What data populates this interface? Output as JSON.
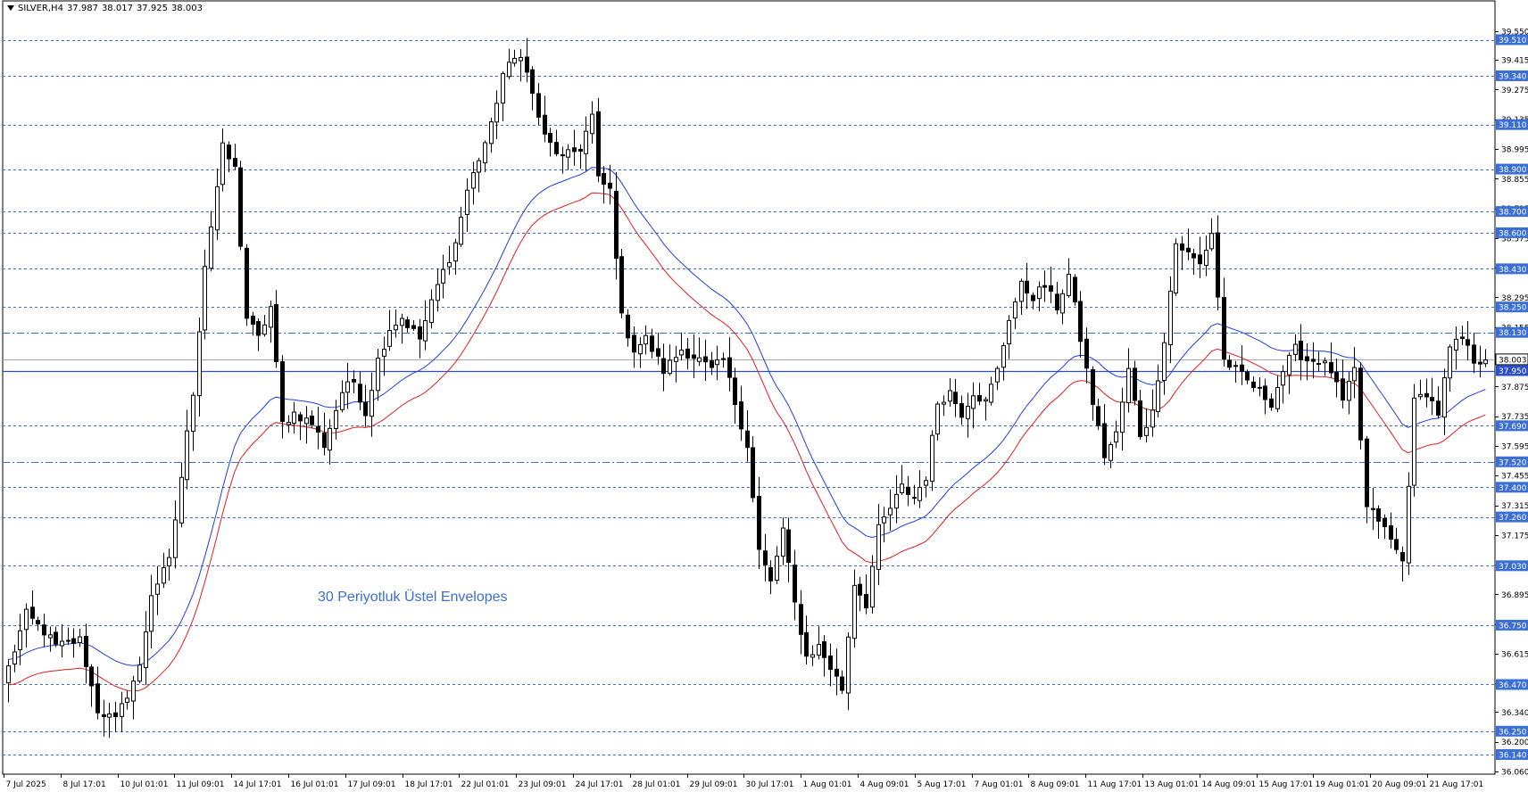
{
  "header": {
    "symbol": "SILVER,H4",
    "open": "37.987",
    "high": "38.017",
    "low": "37.925",
    "close": "38.003"
  },
  "annotation": "30 Periyotluk Üstel Envelopes",
  "chart_data": {
    "type": "candlestick",
    "symbol": "SILVER",
    "timeframe": "H4",
    "ylim": [
      36.06,
      39.55
    ],
    "y_ticks": [
      "39.550",
      "39.415",
      "39.275",
      "39.135",
      "38.995",
      "38.855",
      "38.715",
      "38.575",
      "38.435",
      "38.295",
      "38.155",
      "38.015",
      "37.875",
      "37.735",
      "37.595",
      "37.455",
      "37.315",
      "37.175",
      "37.035",
      "36.895",
      "36.755",
      "36.615",
      "36.475",
      "36.340",
      "36.200",
      "36.060"
    ],
    "x_ticks": [
      "7 Jul 2025",
      "8 Jul 17:01",
      "10 Jul 01:01",
      "11 Jul 09:01",
      "14 Jul 17:01",
      "16 Jul 01:01",
      "17 Jul 09:01",
      "18 Jul 17:01",
      "22 Jul 01:01",
      "23 Jul 09:01",
      "24 Jul 17:01",
      "28 Jul 01:01",
      "29 Jul 09:01",
      "30 Jul 17:01",
      "1 Aug 01:01",
      "4 Aug 09:01",
      "5 Aug 17:01",
      "7 Aug 01:01",
      "8 Aug 09:01",
      "11 Aug 17:01",
      "13 Aug 01:01",
      "14 Aug 09:01",
      "15 Aug 17:01",
      "19 Aug 01:01",
      "20 Aug 09:01",
      "21 Aug 17:01"
    ],
    "levels": [
      {
        "value": "39.510",
        "style": "dashed",
        "color": "#3b6fd6"
      },
      {
        "value": "39.340",
        "style": "dashed",
        "color": "#3b6fd6"
      },
      {
        "value": "39.110",
        "style": "dashed",
        "color": "#3b6fd6"
      },
      {
        "value": "38.900",
        "style": "dashed",
        "color": "#3b6fd6"
      },
      {
        "value": "38.700",
        "style": "dashed",
        "color": "#3b6fd6"
      },
      {
        "value": "38.600",
        "style": "dashed",
        "color": "#3b6fd6"
      },
      {
        "value": "38.430",
        "style": "dashed",
        "color": "#3b6fd6"
      },
      {
        "value": "38.250",
        "style": "dashed",
        "color": "#3b6fd6"
      },
      {
        "value": "38.130",
        "style": "dashdot",
        "color": "#3b6fd6"
      },
      {
        "value": "37.950",
        "style": "solid",
        "color": "#2a4fc8"
      },
      {
        "value": "37.690",
        "style": "dashed",
        "color": "#3b6fd6"
      },
      {
        "value": "37.520",
        "style": "dashdot",
        "color": "#3b6fd6"
      },
      {
        "value": "37.400",
        "style": "dashed",
        "color": "#3b6fd6"
      },
      {
        "value": "37.260",
        "style": "dashed",
        "color": "#3b6fd6"
      },
      {
        "value": "37.030",
        "style": "dashed",
        "color": "#3b6fd6"
      },
      {
        "value": "36.750",
        "style": "dashed",
        "color": "#3b6fd6"
      },
      {
        "value": "36.470",
        "style": "dashed",
        "color": "#3b6fd6"
      },
      {
        "value": "36.250",
        "style": "dashed",
        "color": "#3b6fd6"
      },
      {
        "value": "36.140",
        "style": "dashed",
        "color": "#3b6fd6"
      }
    ],
    "current_price": "38.003",
    "waypoints": [
      {
        "i": 0,
        "p": 36.55
      },
      {
        "i": 3,
        "p": 36.8
      },
      {
        "i": 6,
        "p": 36.72
      },
      {
        "i": 8,
        "p": 36.65
      },
      {
        "i": 12,
        "p": 36.68
      },
      {
        "i": 15,
        "p": 36.35
      },
      {
        "i": 18,
        "p": 36.3
      },
      {
        "i": 22,
        "p": 36.55
      },
      {
        "i": 24,
        "p": 36.9
      },
      {
        "i": 27,
        "p": 37.05
      },
      {
        "i": 29,
        "p": 37.45
      },
      {
        "i": 31,
        "p": 37.85
      },
      {
        "i": 33,
        "p": 38.45
      },
      {
        "i": 36,
        "p": 39.0
      },
      {
        "i": 38,
        "p": 38.9
      },
      {
        "i": 40,
        "p": 38.2
      },
      {
        "i": 42,
        "p": 38.1
      },
      {
        "i": 44,
        "p": 38.25
      },
      {
        "i": 46,
        "p": 37.7
      },
      {
        "i": 48,
        "p": 37.75
      },
      {
        "i": 51,
        "p": 37.7
      },
      {
        "i": 53,
        "p": 37.6
      },
      {
        "i": 56,
        "p": 37.85
      },
      {
        "i": 58,
        "p": 37.9
      },
      {
        "i": 60,
        "p": 37.75
      },
      {
        "i": 62,
        "p": 38.0
      },
      {
        "i": 64,
        "p": 38.15
      },
      {
        "i": 66,
        "p": 38.2
      },
      {
        "i": 69,
        "p": 38.1
      },
      {
        "i": 72,
        "p": 38.35
      },
      {
        "i": 75,
        "p": 38.55
      },
      {
        "i": 77,
        "p": 38.8
      },
      {
        "i": 79,
        "p": 38.95
      },
      {
        "i": 81,
        "p": 39.1
      },
      {
        "i": 83,
        "p": 39.35
      },
      {
        "i": 86,
        "p": 39.45
      },
      {
        "i": 88,
        "p": 39.25
      },
      {
        "i": 90,
        "p": 39.05
      },
      {
        "i": 93,
        "p": 38.95
      },
      {
        "i": 96,
        "p": 39.0
      },
      {
        "i": 98,
        "p": 39.15
      },
      {
        "i": 99,
        "p": 38.85
      },
      {
        "i": 101,
        "p": 38.8
      },
      {
        "i": 103,
        "p": 38.2
      },
      {
        "i": 105,
        "p": 38.05
      },
      {
        "i": 107,
        "p": 38.1
      },
      {
        "i": 110,
        "p": 37.95
      },
      {
        "i": 113,
        "p": 38.05
      },
      {
        "i": 116,
        "p": 38.0
      },
      {
        "i": 118,
        "p": 37.95
      },
      {
        "i": 120,
        "p": 38.0
      },
      {
        "i": 122,
        "p": 37.8
      },
      {
        "i": 124,
        "p": 37.6
      },
      {
        "i": 126,
        "p": 37.1
      },
      {
        "i": 128,
        "p": 36.95
      },
      {
        "i": 130,
        "p": 37.2
      },
      {
        "i": 132,
        "p": 36.85
      },
      {
        "i": 134,
        "p": 36.6
      },
      {
        "i": 136,
        "p": 36.65
      },
      {
        "i": 138,
        "p": 36.55
      },
      {
        "i": 140,
        "p": 36.45
      },
      {
        "i": 142,
        "p": 36.95
      },
      {
        "i": 144,
        "p": 36.85
      },
      {
        "i": 146,
        "p": 37.2
      },
      {
        "i": 148,
        "p": 37.3
      },
      {
        "i": 150,
        "p": 37.4
      },
      {
        "i": 152,
        "p": 37.35
      },
      {
        "i": 154,
        "p": 37.45
      },
      {
        "i": 156,
        "p": 37.8
      },
      {
        "i": 158,
        "p": 37.85
      },
      {
        "i": 160,
        "p": 37.75
      },
      {
        "i": 162,
        "p": 37.85
      },
      {
        "i": 164,
        "p": 37.8
      },
      {
        "i": 166,
        "p": 37.95
      },
      {
        "i": 168,
        "p": 38.2
      },
      {
        "i": 170,
        "p": 38.35
      },
      {
        "i": 172,
        "p": 38.3
      },
      {
        "i": 174,
        "p": 38.35
      },
      {
        "i": 176,
        "p": 38.25
      },
      {
        "i": 178,
        "p": 38.4
      },
      {
        "i": 180,
        "p": 38.1
      },
      {
        "i": 182,
        "p": 37.8
      },
      {
        "i": 184,
        "p": 37.55
      },
      {
        "i": 186,
        "p": 37.65
      },
      {
        "i": 188,
        "p": 37.95
      },
      {
        "i": 190,
        "p": 37.65
      },
      {
        "i": 192,
        "p": 37.75
      },
      {
        "i": 194,
        "p": 38.1
      },
      {
        "i": 196,
        "p": 38.55
      },
      {
        "i": 198,
        "p": 38.5
      },
      {
        "i": 200,
        "p": 38.45
      },
      {
        "i": 202,
        "p": 38.6
      },
      {
        "i": 204,
        "p": 38.0
      },
      {
        "i": 206,
        "p": 37.95
      },
      {
        "i": 208,
        "p": 37.9
      },
      {
        "i": 210,
        "p": 37.85
      },
      {
        "i": 212,
        "p": 37.8
      },
      {
        "i": 214,
        "p": 37.95
      },
      {
        "i": 216,
        "p": 38.05
      },
      {
        "i": 218,
        "p": 38.0
      },
      {
        "i": 220,
        "p": 38.0
      },
      {
        "i": 222,
        "p": 37.95
      },
      {
        "i": 224,
        "p": 37.8
      },
      {
        "i": 226,
        "p": 37.95
      },
      {
        "i": 228,
        "p": 37.3
      },
      {
        "i": 230,
        "p": 37.25
      },
      {
        "i": 232,
        "p": 37.15
      },
      {
        "i": 234,
        "p": 37.05
      },
      {
        "i": 236,
        "p": 37.8
      },
      {
        "i": 238,
        "p": 37.85
      },
      {
        "i": 240,
        "p": 37.75
      },
      {
        "i": 242,
        "p": 38.05
      },
      {
        "i": 244,
        "p": 38.1
      },
      {
        "i": 246,
        "p": 38.0
      },
      {
        "i": 248,
        "p": 38.0
      }
    ]
  }
}
